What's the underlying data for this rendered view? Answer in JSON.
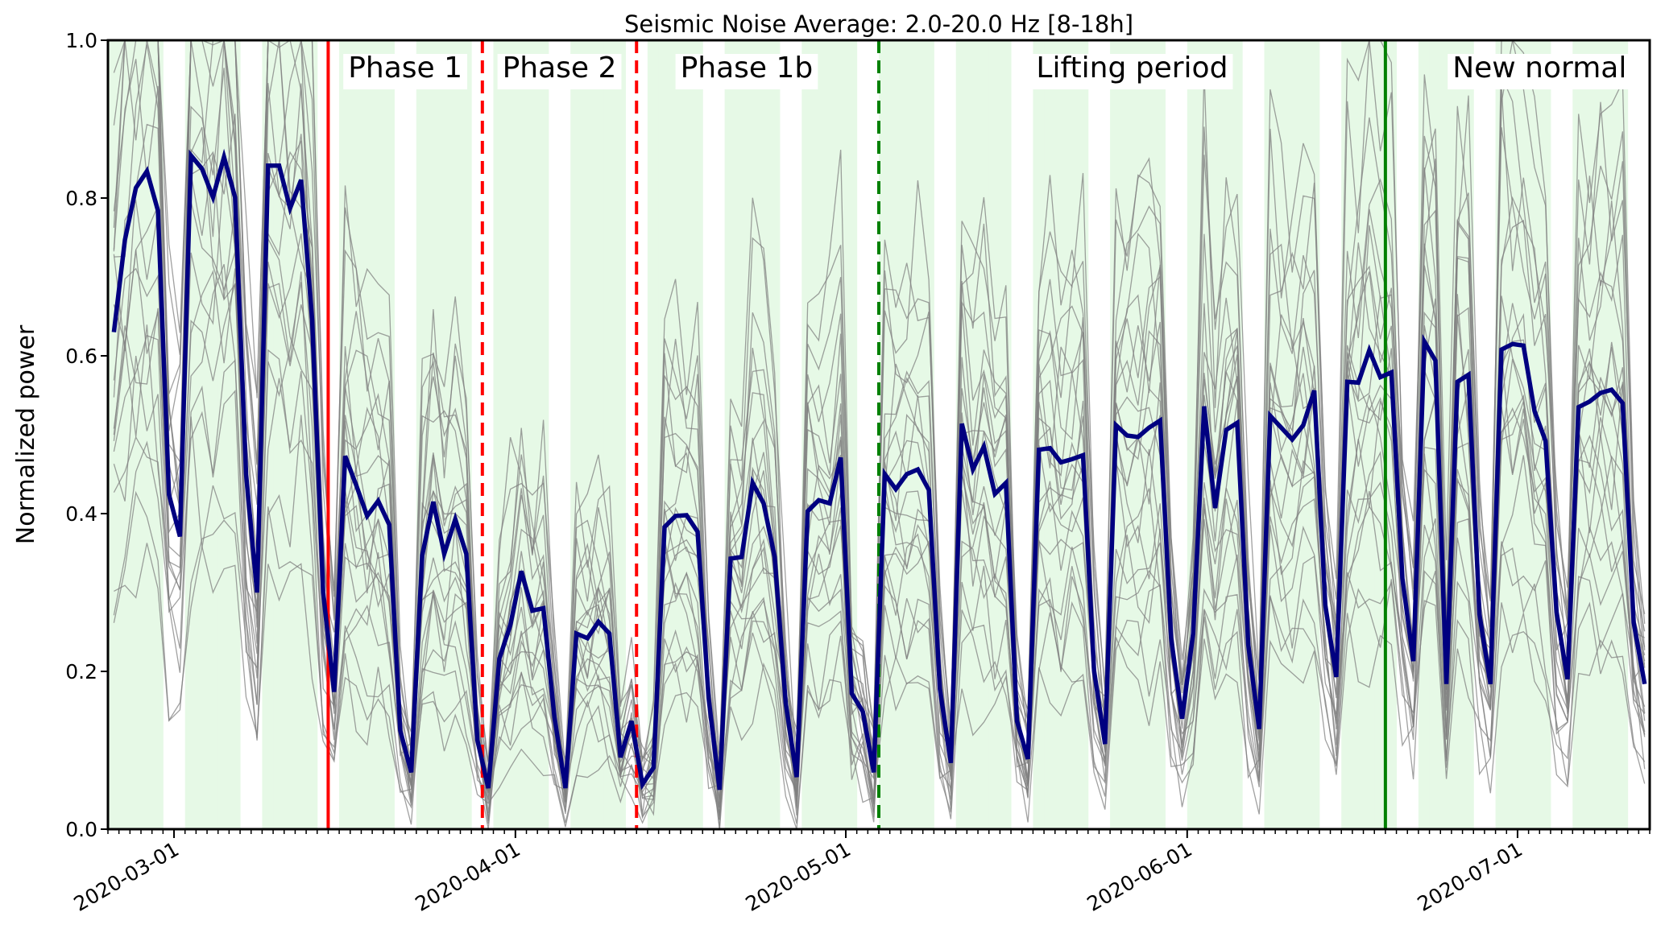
{
  "chart_data": {
    "type": "line",
    "title": "Seismic Noise Average:  2.0-20.0 Hz [8-18h]",
    "xlabel": "",
    "ylabel": "Normalized power",
    "x_start_date": "2020-02-24",
    "x_end_date": "2020-07-13",
    "ylim": [
      0.0,
      1.0
    ],
    "y_ticks": [
      0.0,
      0.2,
      0.4,
      0.6,
      0.8,
      1.0
    ],
    "y_tick_labels": [
      "0.0",
      "0.2",
      "0.4",
      "0.6",
      "0.8",
      "1.0"
    ],
    "x_ticks": [
      {
        "date": "2020-03-01",
        "label": "2020-03-01"
      },
      {
        "date": "2020-04-01",
        "label": "2020-04-01"
      },
      {
        "date": "2020-05-01",
        "label": "2020-05-01"
      },
      {
        "date": "2020-06-01",
        "label": "2020-06-01"
      },
      {
        "date": "2020-07-01",
        "label": "2020-07-01"
      }
    ],
    "minor_ticks": "daily",
    "sample_hour": 13,
    "weekday_shading": {
      "description": "Weekdays (Mon-Fri) shaded",
      "color": "#e6f9e6"
    },
    "mean_series": {
      "name": "Network average",
      "color": "#000080",
      "start_date": "2020-02-24",
      "values": [
        0.63,
        0.747,
        0.813,
        0.834,
        0.784,
        0.424,
        0.371,
        0.854,
        0.837,
        0.801,
        0.852,
        0.801,
        0.45,
        0.3,
        0.841,
        0.841,
        0.787,
        0.823,
        0.646,
        0.3,
        0.174,
        0.473,
        0.436,
        0.397,
        0.416,
        0.386,
        0.125,
        0.072,
        0.347,
        0.415,
        0.349,
        0.393,
        0.349,
        0.113,
        0.052,
        0.216,
        0.259,
        0.327,
        0.277,
        0.28,
        0.142,
        0.052,
        0.248,
        0.242,
        0.263,
        0.248,
        0.091,
        0.137,
        0.057,
        0.078,
        0.383,
        0.397,
        0.398,
        0.377,
        0.166,
        0.05,
        0.343,
        0.345,
        0.439,
        0.413,
        0.345,
        0.16,
        0.066,
        0.403,
        0.417,
        0.413,
        0.471,
        0.172,
        0.149,
        0.072,
        0.45,
        0.431,
        0.45,
        0.456,
        0.43,
        0.178,
        0.084,
        0.514,
        0.456,
        0.485,
        0.425,
        0.439,
        0.137,
        0.089,
        0.481,
        0.483,
        0.465,
        0.469,
        0.474,
        0.201,
        0.108,
        0.512,
        0.499,
        0.497,
        0.509,
        0.518,
        0.242,
        0.14,
        0.248,
        0.536,
        0.407,
        0.506,
        0.515,
        0.234,
        0.127,
        0.524,
        0.509,
        0.494,
        0.512,
        0.556,
        0.284,
        0.193,
        0.567,
        0.566,
        0.607,
        0.573,
        0.579,
        0.318,
        0.213,
        0.618,
        0.594,
        0.184,
        0.567,
        0.576,
        0.272,
        0.184,
        0.608,
        0.615,
        0.613,
        0.53,
        0.492,
        0.275,
        0.19,
        0.535,
        0.542,
        0.553,
        0.557,
        0.54,
        0.262,
        0.184
      ]
    },
    "station_series": {
      "name": "Individual stations",
      "color": "#808080",
      "count": 22,
      "relative_level": [
        1.55,
        1.4,
        1.3,
        1.22,
        1.15,
        1.1,
        1.05,
        1.0,
        0.96,
        0.92,
        0.88,
        0.84,
        0.8,
        0.76,
        0.72,
        0.66,
        0.6,
        0.52,
        0.45,
        1.6,
        0.38,
        1.35
      ]
    },
    "event_lines": [
      {
        "date": "2020-03-15",
        "style": "solid",
        "color": "#ff0000"
      },
      {
        "date": "2020-03-29",
        "style": "dashed",
        "color": "#ff0000"
      },
      {
        "date": "2020-04-12",
        "style": "dashed",
        "color": "#ff0000"
      },
      {
        "date": "2020-05-04",
        "style": "dashed",
        "color": "#008000"
      },
      {
        "date": "2020-06-19",
        "style": "solid",
        "color": "#008000"
      }
    ],
    "annotations": [
      {
        "text": "Phase 1",
        "date": "2020-03-22"
      },
      {
        "text": "Phase 2",
        "date": "2020-04-05"
      },
      {
        "text": "Phase 1b",
        "date": "2020-04-22"
      },
      {
        "text": "Lifting period",
        "date": "2020-05-27"
      },
      {
        "text": "New normal",
        "date": "2020-07-03"
      }
    ],
    "grid": false,
    "legend": "none"
  }
}
